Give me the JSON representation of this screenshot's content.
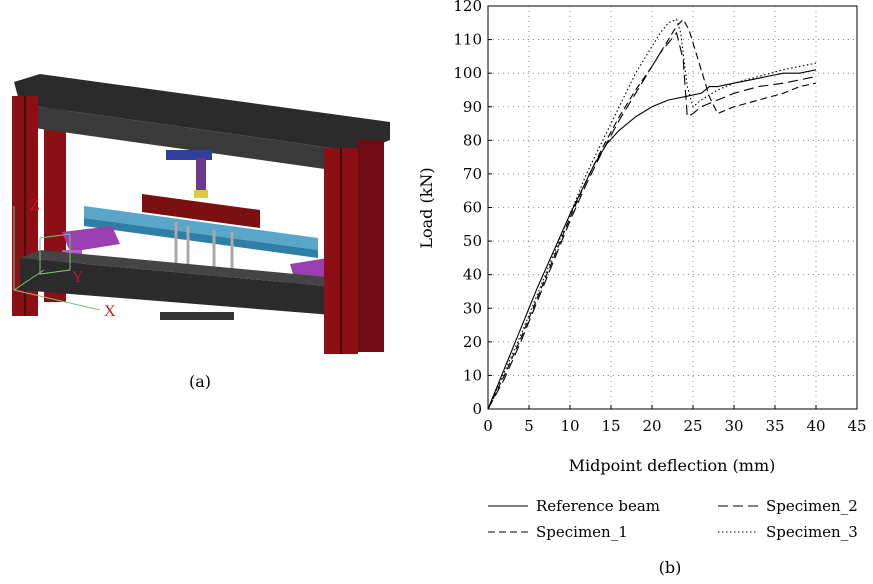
{
  "figure_a": {
    "caption": "(a)",
    "axis_labels": {
      "z": "Z",
      "y": "Y",
      "x": "X"
    },
    "colors": {
      "frame_red": "#8b0f14",
      "frame_beam": "#2b2b2b",
      "test_beam": "#5aa6c8",
      "support_purple": "#9a3fb0",
      "spreader_red": "#7a1010",
      "jack_purple": "#6b3a8a",
      "jack_blue": "#2f3f9e",
      "axis_green": "#7fc07f",
      "axis_label_red": "#c0181e"
    }
  },
  "figure_b": {
    "caption": "(b)"
  },
  "chart_data": {
    "type": "line",
    "xlabel": "Midpoint deflection (mm)",
    "ylabel": "Load (kN)",
    "xlim": [
      0,
      45
    ],
    "ylim": [
      0,
      120
    ],
    "xticks": [
      0,
      5,
      10,
      15,
      20,
      25,
      30,
      35,
      40,
      45
    ],
    "yticks": [
      0,
      10,
      20,
      30,
      40,
      50,
      60,
      70,
      80,
      90,
      100,
      110,
      120
    ],
    "grid": true,
    "legend_position": "bottom",
    "series": [
      {
        "name": "Reference beam",
        "style": "solid",
        "x": [
          0,
          2,
          4,
          6,
          8,
          10,
          12,
          13,
          14,
          14.5,
          16,
          18,
          20,
          22,
          24,
          26,
          27,
          28,
          30,
          32,
          34,
          36,
          38,
          40
        ],
        "y": [
          0,
          12,
          24,
          36,
          47,
          58,
          68,
          73,
          77,
          79,
          83,
          87,
          90,
          92,
          93,
          94,
          96,
          96,
          97,
          98,
          99,
          100,
          100,
          101
        ]
      },
      {
        "name": "Specimen_1",
        "style": "dashed",
        "x": [
          0,
          2,
          4,
          6,
          8,
          10,
          12,
          14,
          16,
          18,
          20,
          22,
          23,
          23.8,
          24.5,
          25.5,
          27,
          28,
          30,
          33,
          36,
          38,
          40
        ],
        "y": [
          0,
          10,
          21,
          33,
          45,
          57,
          68,
          78,
          87,
          95,
          102,
          110,
          114,
          116,
          113,
          105,
          93,
          88,
          90,
          92,
          94,
          96,
          97
        ]
      },
      {
        "name": "Specimen_2",
        "style": "longdash",
        "x": [
          0,
          2,
          4,
          6,
          8,
          10,
          12,
          14,
          16,
          18,
          20,
          21,
          22,
          23,
          23.8,
          24.3,
          25,
          26,
          28,
          30,
          33,
          36,
          38,
          40
        ],
        "y": [
          0,
          9,
          20,
          32,
          44,
          56,
          67,
          77,
          86,
          94,
          102,
          106,
          109,
          112,
          104,
          87,
          88,
          90,
          92,
          94,
          96,
          97,
          98,
          99
        ]
      },
      {
        "name": "Specimen_3",
        "style": "dotted",
        "x": [
          0,
          2,
          4,
          6,
          8,
          10,
          12,
          14,
          16,
          18,
          20,
          21,
          22,
          23,
          23.5,
          24.3,
          25,
          26,
          28,
          30,
          33,
          36,
          38,
          40
        ],
        "y": [
          0,
          11,
          22,
          34,
          46,
          58,
          70,
          80,
          90,
          100,
          108,
          112,
          115,
          116,
          112,
          96,
          90,
          92,
          95,
          97,
          99,
          101,
          102,
          103
        ]
      }
    ]
  }
}
